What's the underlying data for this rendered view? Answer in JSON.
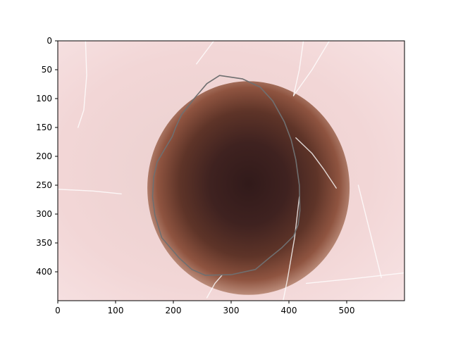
{
  "chart_data": {
    "type": "image",
    "image_content": "dermoscopy-skin-lesion",
    "xlim": [
      0,
      600
    ],
    "ylim": [
      450,
      0
    ],
    "y_inverted": true,
    "x_ticks": [
      0,
      100,
      200,
      300,
      400,
      500
    ],
    "y_ticks": [
      0,
      50,
      100,
      150,
      200,
      250,
      300,
      350,
      400
    ],
    "grid": false,
    "colors": {
      "skin": "#f1d3d1",
      "skin_light": "#f7e1e1",
      "lesion_core": "#3b1f1d",
      "lesion_mid": "#6b3a2c",
      "lesion_rim": "#a86a52",
      "contour": "#6f6f70",
      "hair": "#ffffff"
    },
    "segmentation_contour": [
      [
        280,
        60
      ],
      [
        320,
        66
      ],
      [
        350,
        80
      ],
      [
        372,
        104
      ],
      [
        392,
        140
      ],
      [
        404,
        172
      ],
      [
        412,
        206
      ],
      [
        418,
        250
      ],
      [
        419,
        294
      ],
      [
        416,
        318
      ],
      [
        408,
        338
      ],
      [
        388,
        358
      ],
      [
        366,
        376
      ],
      [
        342,
        396
      ],
      [
        300,
        405
      ],
      [
        255,
        406
      ],
      [
        232,
        396
      ],
      [
        210,
        376
      ],
      [
        180,
        341
      ],
      [
        168,
        302
      ],
      [
        164,
        270
      ],
      [
        166,
        236
      ],
      [
        172,
        210
      ],
      [
        186,
        186
      ],
      [
        198,
        166
      ],
      [
        204,
        150
      ],
      [
        214,
        128
      ],
      [
        236,
        100
      ],
      [
        258,
        74
      ]
    ]
  }
}
